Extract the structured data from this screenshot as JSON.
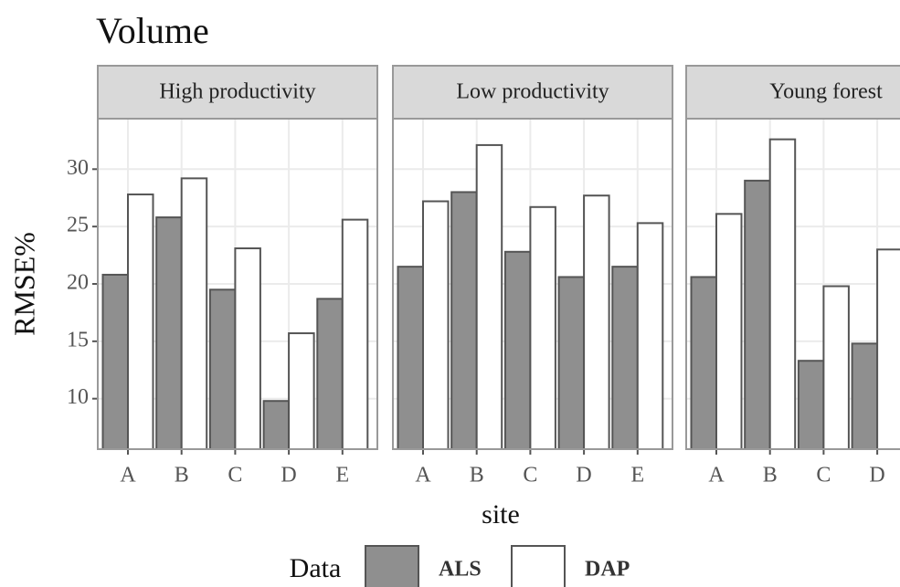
{
  "title": "Volume",
  "y_label": "RMSE%",
  "x_label": "site",
  "legend_title": "Data",
  "chart_data": [
    {
      "type": "bar",
      "title": "High productivity",
      "categories": [
        "A",
        "B",
        "C",
        "D",
        "E"
      ],
      "series": [
        {
          "name": "ALS",
          "color": "#8f8f8f",
          "values": [
            20.8,
            25.8,
            19.5,
            9.8,
            18.7
          ]
        },
        {
          "name": "DAP",
          "color": "#ffffff",
          "values": [
            27.8,
            29.2,
            23.1,
            15.7,
            25.6
          ]
        }
      ],
      "ylim": [
        5.6,
        34.4
      ],
      "yticks": [
        10,
        15,
        20,
        25,
        30
      ],
      "grid": true
    },
    {
      "type": "bar",
      "title": "Low productivity",
      "categories": [
        "A",
        "B",
        "C",
        "D",
        "E"
      ],
      "series": [
        {
          "name": "ALS",
          "color": "#8f8f8f",
          "values": [
            21.5,
            28.0,
            22.8,
            20.6,
            21.5
          ]
        },
        {
          "name": "DAP",
          "color": "#ffffff",
          "values": [
            27.2,
            32.1,
            26.7,
            27.7,
            25.3
          ]
        }
      ],
      "ylim": [
        5.6,
        34.4
      ],
      "yticks": [
        10,
        15,
        20,
        25,
        30
      ],
      "grid": true
    },
    {
      "type": "bar",
      "title": "Young forest",
      "categories": [
        "A",
        "B",
        "C",
        "D"
      ],
      "series": [
        {
          "name": "ALS",
          "color": "#8f8f8f",
          "values": [
            20.6,
            29.0,
            13.3,
            14.8
          ]
        },
        {
          "name": "DAP",
          "color": "#ffffff",
          "values": [
            26.1,
            32.6,
            19.8,
            23.0
          ]
        }
      ],
      "ylim": [
        5.6,
        34.4
      ],
      "yticks": [
        10,
        15,
        20,
        25,
        30
      ],
      "grid": true
    }
  ]
}
